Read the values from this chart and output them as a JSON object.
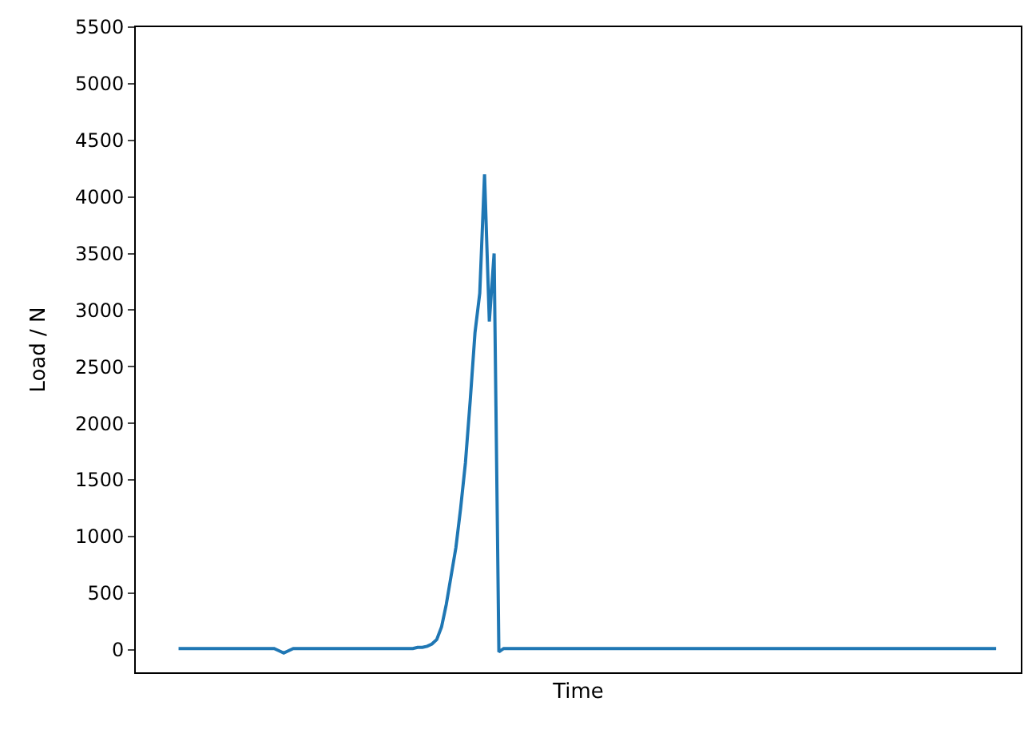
{
  "chart_data": {
    "type": "line",
    "xlabel": "Time",
    "ylabel": "Load / N",
    "color": "#1f77b4",
    "categories": [
      null,
      null,
      null,
      null,
      null,
      null,
      null,
      null,
      null,
      null,
      null,
      null,
      null,
      null,
      null,
      null,
      null,
      null,
      null,
      null,
      null,
      null,
      null,
      null,
      null,
      null,
      null,
      null,
      null,
      null,
      null,
      null,
      null,
      null,
      null,
      null,
      null,
      null,
      null,
      null,
      null,
      null,
      null,
      null,
      null,
      null,
      null,
      null,
      null,
      null,
      null,
      null,
      null,
      null,
      null,
      null,
      null,
      null,
      null,
      null,
      null,
      null,
      null,
      null,
      null,
      null,
      null,
      null,
      null,
      null,
      null,
      null,
      null,
      null,
      null,
      null,
      null,
      null,
      null,
      null,
      null,
      null,
      null,
      null,
      null,
      null,
      null,
      null,
      null,
      null,
      null,
      null,
      null,
      null,
      null,
      null,
      null,
      null,
      null,
      null,
      null,
      null,
      null,
      null,
      null,
      null,
      null,
      null,
      null,
      null,
      null,
      null,
      null,
      null,
      null,
      null,
      null,
      null,
      null,
      null,
      null,
      null,
      null,
      null,
      null,
      null,
      null,
      null,
      null,
      null,
      null,
      null,
      null,
      null,
      null,
      null,
      null,
      null,
      null,
      null,
      null,
      null,
      null,
      null,
      null,
      null,
      null,
      null,
      null,
      null,
      null,
      null,
      null,
      null,
      null,
      null,
      null,
      null,
      null,
      null,
      null,
      null,
      null,
      null,
      null,
      null,
      null,
      null,
      null,
      null,
      null,
      null
    ],
    "values": [
      10,
      10,
      10,
      10,
      10,
      10,
      10,
      10,
      10,
      10,
      10,
      10,
      10,
      10,
      10,
      10,
      10,
      10,
      10,
      10,
      10,
      -10,
      -30,
      -10,
      10,
      10,
      10,
      10,
      10,
      10,
      10,
      10,
      10,
      10,
      10,
      10,
      10,
      10,
      10,
      10,
      10,
      10,
      10,
      10,
      10,
      10,
      10,
      10,
      10,
      10,
      20,
      20,
      30,
      50,
      90,
      200,
      400,
      650,
      900,
      1250,
      1650,
      2200,
      2800,
      3150,
      4200,
      2900,
      3500,
      -20,
      10,
      10,
      10,
      10,
      10,
      10,
      10,
      10,
      10,
      10,
      10,
      10,
      10,
      10,
      10,
      10,
      10,
      10,
      10,
      10,
      10,
      10,
      10,
      10,
      10,
      10,
      10,
      10,
      10,
      10,
      10,
      10,
      10,
      10,
      10,
      10,
      10,
      10,
      10,
      10,
      10,
      10,
      10,
      10,
      10,
      10,
      10,
      10,
      10,
      10,
      10,
      10,
      10,
      10,
      10,
      10,
      10,
      10,
      10,
      10,
      10,
      10,
      10,
      10,
      10,
      10,
      10,
      10,
      10,
      10,
      10,
      10,
      10,
      10,
      10,
      10,
      10,
      10,
      10,
      10,
      10,
      10,
      10,
      10,
      10,
      10,
      10,
      10,
      10,
      10,
      10,
      10,
      10,
      10,
      10,
      10,
      10,
      10,
      10,
      10,
      10,
      10,
      10,
      10
    ],
    "ylim": [
      -200,
      5500
    ],
    "yticks": [
      0,
      500,
      1000,
      1500,
      2000,
      2500,
      3000,
      3500,
      4000,
      4500,
      5000,
      5500
    ],
    "marker": "none",
    "line_style": "solid"
  }
}
